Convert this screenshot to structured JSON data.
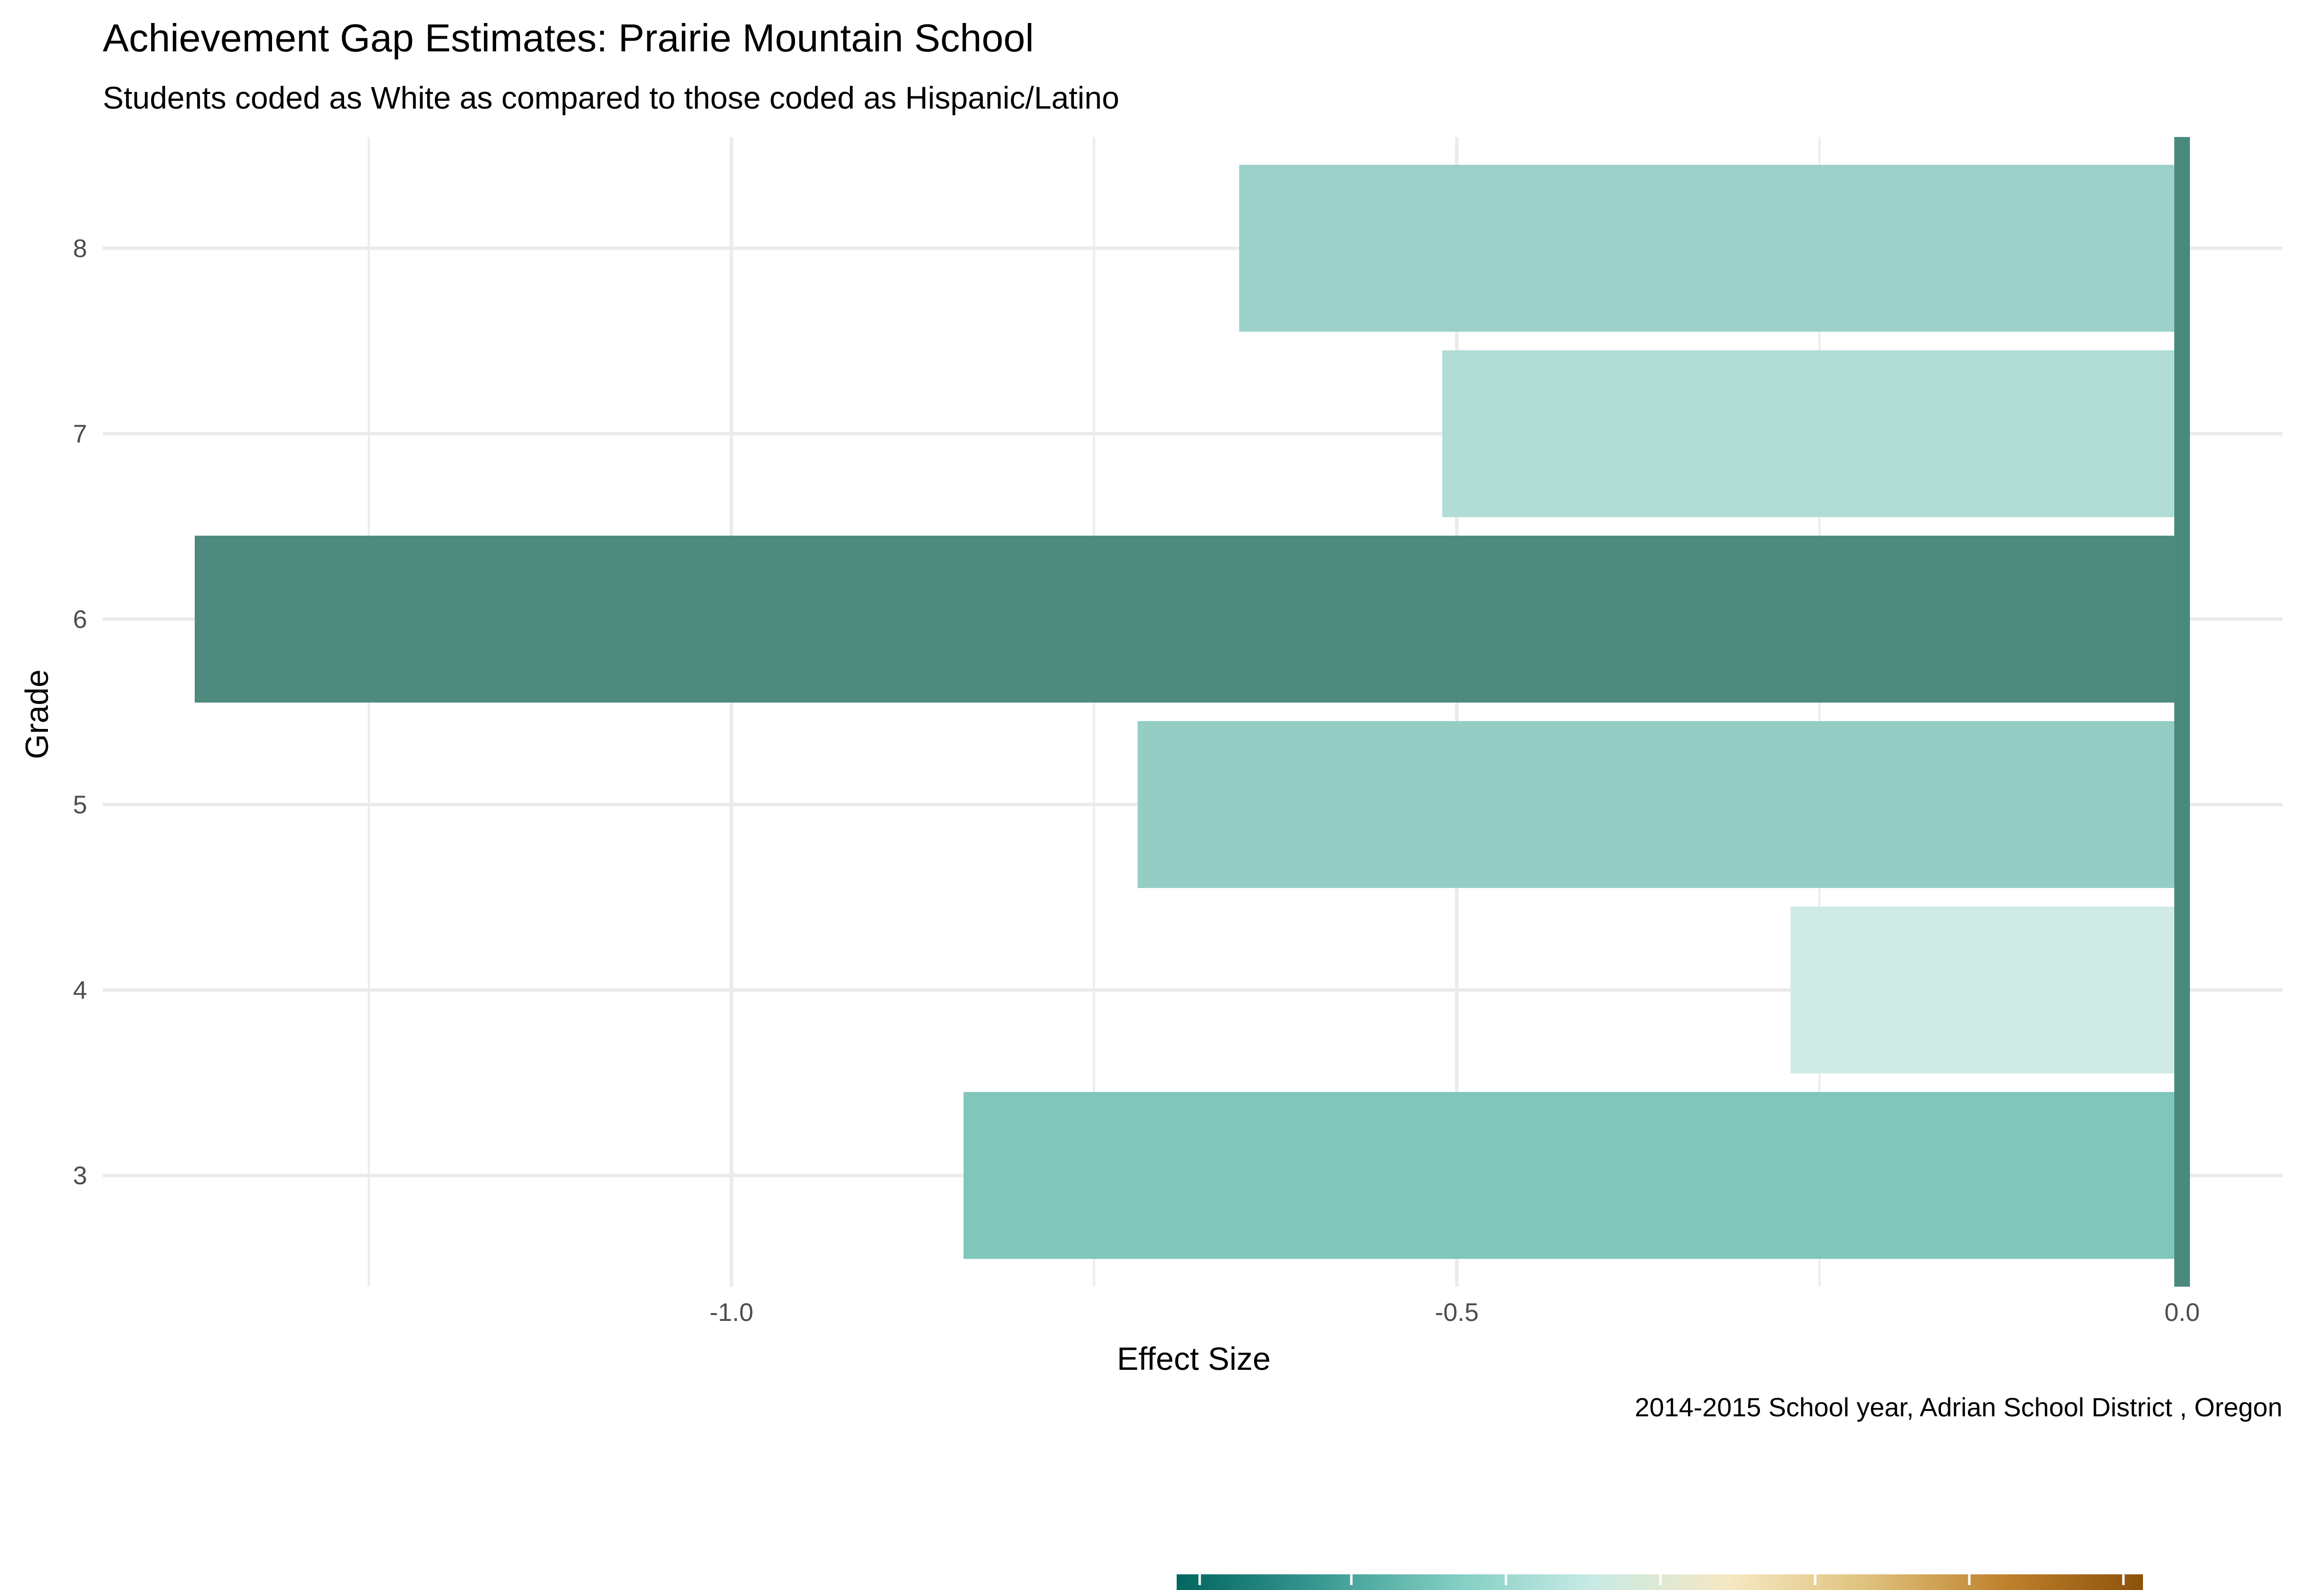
{
  "title": "Achievement Gap Estimates: Prairie Mountain School",
  "subtitle": "Students coded as White as compared to those coded as Hispanic/Latino",
  "caption": "2014-2015 School year,  Adrian School District , Oregon",
  "colors": {
    "reference_line": "#4a8a7e",
    "scale_stops": [
      "#01665e",
      "#35978f",
      "#80cdc1",
      "#c7eae5",
      "#f6e8c3",
      "#dfc27d",
      "#bf812d",
      "#8c510a"
    ]
  },
  "chart_data": {
    "type": "bar",
    "orientation": "horizontal",
    "xlabel": "Effect Size",
    "ylabel": "Grade",
    "xlim": [
      -1.42,
      0.03
    ],
    "x_ticks": [
      -1.0,
      -0.5,
      0.0
    ],
    "x_tick_labels": [
      "-1.0",
      "-0.5",
      "0.0"
    ],
    "categories": [
      "3",
      "4",
      "5",
      "6",
      "7",
      "8"
    ],
    "values": [
      -0.84,
      -0.27,
      -0.72,
      -1.37,
      -0.51,
      -0.65
    ],
    "bar_colors": [
      "#80c6bb",
      "#d0ebe5",
      "#94cdc4",
      "#4f8a7f",
      "#b2ddd7",
      "#9bd1c8"
    ],
    "reference_line_x": 0.0,
    "grid": true
  }
}
